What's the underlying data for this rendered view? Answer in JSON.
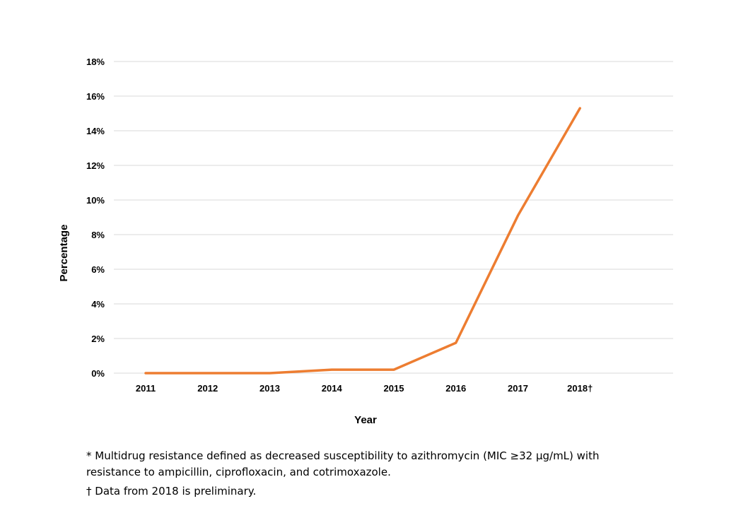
{
  "chart_data": {
    "type": "line",
    "title": "",
    "xlabel": "Year",
    "ylabel": "Percentage",
    "categories": [
      "2011",
      "2012",
      "2013",
      "2014",
      "2015",
      "2016",
      "2017",
      "2018†"
    ],
    "y_ticks": [
      "0%",
      "2%",
      "4%",
      "6%",
      "8%",
      "10%",
      "12%",
      "14%",
      "16%",
      "18%"
    ],
    "ylim": [
      0,
      18
    ],
    "grid": true,
    "legend": "none",
    "series": [
      {
        "values": [
          0,
          0,
          0,
          0.2,
          0.2,
          1.75,
          9.1,
          15.3
        ],
        "color": "#ED7D31"
      }
    ]
  },
  "notes": [
    "* Multidrug resistance defined as decreased susceptibility to azithromycin (MIC ≥32 µg/mL) with resistance to ampicillin, ciprofloxacin, and cotrimoxazole.",
    "† Data from 2018 is preliminary."
  ]
}
